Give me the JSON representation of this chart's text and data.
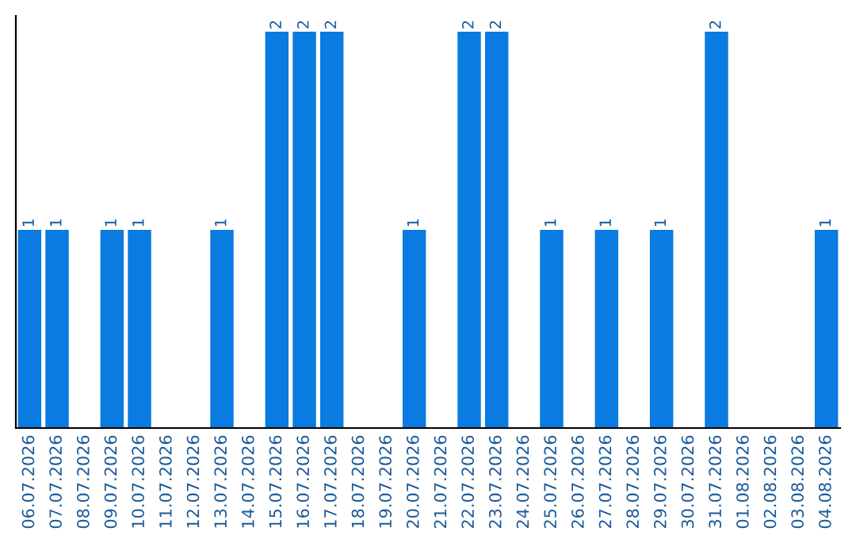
{
  "chart_data": {
    "type": "bar",
    "categories": [
      "06.07.2026",
      "07.07.2026",
      "08.07.2026",
      "09.07.2026",
      "10.07.2026",
      "11.07.2026",
      "12.07.2026",
      "13.07.2026",
      "14.07.2026",
      "15.07.2026",
      "16.07.2026",
      "17.07.2026",
      "18.07.2026",
      "19.07.2026",
      "20.07.2026",
      "21.07.2026",
      "22.07.2026",
      "23.07.2026",
      "24.07.2026",
      "25.07.2026",
      "26.07.2026",
      "27.07.2026",
      "28.07.2026",
      "29.07.2026",
      "30.07.2026",
      "31.07.2026",
      "01.08.2026",
      "02.08.2026",
      "03.08.2026",
      "04.08.2026"
    ],
    "values": [
      1,
      1,
      0,
      1,
      1,
      0,
      0,
      1,
      0,
      2,
      2,
      2,
      0,
      0,
      1,
      0,
      2,
      2,
      0,
      1,
      0,
      1,
      0,
      1,
      0,
      2,
      0,
      0,
      0,
      1
    ],
    "value_labels": [
      "1",
      "1",
      null,
      "1",
      "1",
      null,
      null,
      "1",
      null,
      "2",
      "2",
      "2",
      null,
      null,
      "1",
      null,
      "2",
      "2",
      null,
      "1",
      null,
      "1",
      null,
      "1",
      null,
      "2",
      null,
      null,
      null,
      "1"
    ],
    "color": "#0a7be0",
    "tick_labels": "x",
    "grid": false,
    "legend": false
  }
}
